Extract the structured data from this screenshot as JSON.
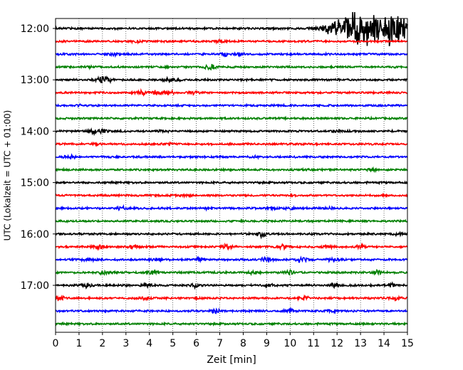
{
  "chart_data": {
    "type": "line",
    "xlabel": "Zeit  [min]",
    "ylabel": "UTC (Lokalzeit = UTC + 01:00)",
    "xlim": [
      0,
      15
    ],
    "x_ticks": [
      "0",
      "1",
      "2",
      "3",
      "4",
      "5",
      "6",
      "7",
      "8",
      "9",
      "10",
      "11",
      "12",
      "13",
      "14",
      "15"
    ],
    "y_ticks": [
      "12:00",
      "13:00",
      "14:00",
      "15:00",
      "16:00",
      "17:00"
    ],
    "grid": "vertical-dotted",
    "trace_interval_min": 15,
    "colors": [
      "#000000",
      "#ff0000",
      "#0000ff",
      "#008000"
    ],
    "traces": [
      {
        "start": "12:00",
        "color": "#000000",
        "bursts": [
          [
            0.1,
            0.5
          ],
          [
            12.0,
            4
          ],
          [
            12.7,
            6
          ],
          [
            13.2,
            8
          ],
          [
            14.1,
            9
          ],
          [
            14.7,
            6
          ]
        ]
      },
      {
        "start": "12:15",
        "color": "#ff0000",
        "bursts": [
          [
            3.5,
            0.8
          ],
          [
            7.0,
            0.6
          ]
        ]
      },
      {
        "start": "12:30",
        "color": "#0000ff",
        "bursts": [
          [
            2.5,
            0.8
          ],
          [
            7.3,
            1.5
          ],
          [
            7.8,
            1.0
          ]
        ]
      },
      {
        "start": "12:45",
        "color": "#008000",
        "bursts": [
          [
            6.6,
            2.5
          ],
          [
            1.5,
            0.6
          ]
        ]
      },
      {
        "start": "13:00",
        "color": "#000000",
        "bursts": [
          [
            1.9,
            1.8
          ],
          [
            2.2,
            1.5
          ],
          [
            4.8,
            1.3
          ],
          [
            5.2,
            0.8
          ]
        ]
      },
      {
        "start": "13:15",
        "color": "#ff0000",
        "bursts": [
          [
            3.7,
            1.5
          ],
          [
            4.3,
            1.8
          ],
          [
            4.9,
            1.2
          ],
          [
            5.9,
            1.0
          ]
        ]
      },
      {
        "start": "13:30",
        "color": "#0000ff",
        "bursts": [
          [
            1.1,
            0.5
          ]
        ]
      },
      {
        "start": "13:45",
        "color": "#008000",
        "bursts": []
      },
      {
        "start": "14:00",
        "color": "#000000",
        "bursts": [
          [
            1.6,
            1.5
          ],
          [
            2.0,
            1.2
          ],
          [
            4.6,
            0.6
          ],
          [
            12.0,
            0.8
          ]
        ]
      },
      {
        "start": "14:15",
        "color": "#ff0000",
        "bursts": [
          [
            1.7,
            0.6
          ],
          [
            4.8,
            0.5
          ]
        ]
      },
      {
        "start": "14:30",
        "color": "#0000ff",
        "bursts": [
          [
            0.6,
            1.4
          ],
          [
            8.5,
            0.5
          ]
        ]
      },
      {
        "start": "14:45",
        "color": "#008000",
        "bursts": [
          [
            13.5,
            0.6
          ]
        ]
      },
      {
        "start": "15:00",
        "color": "#000000",
        "bursts": []
      },
      {
        "start": "15:15",
        "color": "#ff0000",
        "bursts": [
          [
            5.6,
            0.8
          ]
        ]
      },
      {
        "start": "15:30",
        "color": "#0000ff",
        "bursts": [
          [
            2.8,
            1.0
          ],
          [
            6.5,
            1.2
          ],
          [
            9.2,
            1.0
          ],
          [
            10.0,
            1.0
          ],
          [
            11.8,
            0.8
          ]
        ]
      },
      {
        "start": "15:45",
        "color": "#008000",
        "bursts": []
      },
      {
        "start": "16:00",
        "color": "#000000",
        "bursts": [
          [
            8.8,
            1.8
          ],
          [
            14.6,
            1.0
          ]
        ]
      },
      {
        "start": "16:15",
        "color": "#ff0000",
        "bursts": [
          [
            1.8,
            1.5
          ],
          [
            3.3,
            1.2
          ],
          [
            7.3,
            1.4
          ],
          [
            9.7,
            1.2
          ],
          [
            11.6,
            1.2
          ],
          [
            13.0,
            1.2
          ]
        ]
      },
      {
        "start": "16:30",
        "color": "#0000ff",
        "bursts": [
          [
            1.4,
            1.2
          ],
          [
            4.3,
            1.2
          ],
          [
            6.2,
            1.5
          ],
          [
            9.0,
            1.6
          ],
          [
            10.5,
            1.7
          ],
          [
            11.8,
            1.3
          ]
        ]
      },
      {
        "start": "16:45",
        "color": "#008000",
        "bursts": [
          [
            2.0,
            1.2
          ],
          [
            4.1,
            1.1
          ],
          [
            8.4,
            1.2
          ],
          [
            10.0,
            1.3
          ],
          [
            13.7,
            1.4
          ]
        ]
      },
      {
        "start": "17:00",
        "color": "#000000",
        "bursts": [
          [
            1.3,
            1.3
          ],
          [
            3.9,
            1.2
          ],
          [
            5.9,
            1.1
          ],
          [
            9.1,
            1.2
          ],
          [
            11.9,
            1.2
          ],
          [
            14.3,
            1.1
          ]
        ]
      },
      {
        "start": "17:15",
        "color": "#ff0000",
        "bursts": [
          [
            0.2,
            1.7
          ],
          [
            3.8,
            0.9
          ],
          [
            10.6,
            1.2
          ],
          [
            14.5,
            1.7
          ]
        ]
      },
      {
        "start": "17:30",
        "color": "#0000ff",
        "bursts": [
          [
            6.8,
            1.5
          ],
          [
            10.0,
            1.5
          ],
          [
            11.8,
            1.0
          ]
        ]
      },
      {
        "start": "17:45",
        "color": "#008000",
        "bursts": []
      }
    ]
  }
}
